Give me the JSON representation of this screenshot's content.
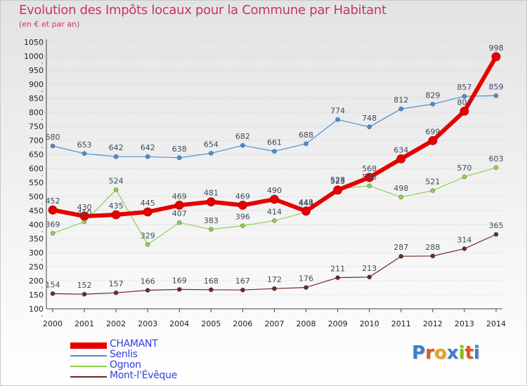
{
  "title": "Evolution des Impôts locaux pour la Commune par Habitant",
  "subtitle": "(en € et par an)",
  "logo": {
    "text": "Proxiti",
    "letters": [
      "P",
      "r",
      "o",
      "x",
      "i",
      "t",
      "i"
    ],
    "colors": [
      "#3a7fd0",
      "#e0561b",
      "#e9a416",
      "#3a7fd0",
      "#8bbd22",
      "#e0561b",
      "#3a7fd0"
    ]
  },
  "chart_data": {
    "type": "line",
    "title": "Evolution des Impôts locaux pour la Commune par Habitant",
    "subtitle": "(en € et par an)",
    "xlabel": "",
    "ylabel": "",
    "x": [
      "2000",
      "2001",
      "2002",
      "2003",
      "2004",
      "2005",
      "2006",
      "2007",
      "2008",
      "2009",
      "2010",
      "2011",
      "2012",
      "2013",
      "2014"
    ],
    "ylim": [
      100,
      1050
    ],
    "yticks": [
      100,
      150,
      200,
      250,
      300,
      350,
      400,
      450,
      500,
      550,
      600,
      650,
      700,
      750,
      800,
      850,
      900,
      950,
      1000,
      1050
    ],
    "grid": "horizontal dotted",
    "legend_position": "bottom-left",
    "series": [
      {
        "name": "CHAMANT",
        "color": "#e60000",
        "values": [
          452,
          430,
          435,
          445,
          469,
          481,
          469,
          490,
          448,
          523,
          568,
          634,
          699,
          804,
          998
        ]
      },
      {
        "name": "Senlis",
        "color": "#4a8ed0",
        "values": [
          680,
          653,
          642,
          642,
          638,
          654,
          682,
          661,
          688,
          774,
          748,
          812,
          829,
          857,
          859
        ]
      },
      {
        "name": "Ognon",
        "color": "#8fd14f",
        "values": [
          369,
          410,
          524,
          329,
          407,
          383,
          396,
          414,
          444,
          528,
          538,
          498,
          521,
          570,
          603
        ]
      },
      {
        "name": "Mont-l'Évêque",
        "color": "#6b2a2a",
        "values": [
          154,
          152,
          157,
          166,
          169,
          168,
          167,
          172,
          176,
          211,
          213,
          287,
          288,
          314,
          365
        ]
      }
    ],
    "value_labels": {
      "CHAMANT": [
        "452",
        "430",
        "435",
        "445",
        "469",
        "481",
        "469",
        "490",
        "448",
        "523",
        "568",
        "634",
        "699",
        "804",
        "998"
      ],
      "Senlis": [
        "680",
        "653",
        "642",
        "642",
        "638",
        "654",
        "682",
        "661",
        "688",
        "774",
        "748",
        "812",
        "829",
        "857",
        "859"
      ],
      "Ognon": [
        "369",
        "410",
        "524",
        "329",
        "407",
        "383",
        "396",
        "414",
        "444",
        "528",
        "538",
        "498",
        "521",
        "570",
        "603"
      ],
      "Mont-l'Évêque": [
        "154",
        "152",
        "157",
        "166",
        "169",
        "168",
        "167",
        "172",
        "176",
        "211",
        "213",
        "287",
        "288",
        "314",
        "365"
      ]
    }
  }
}
